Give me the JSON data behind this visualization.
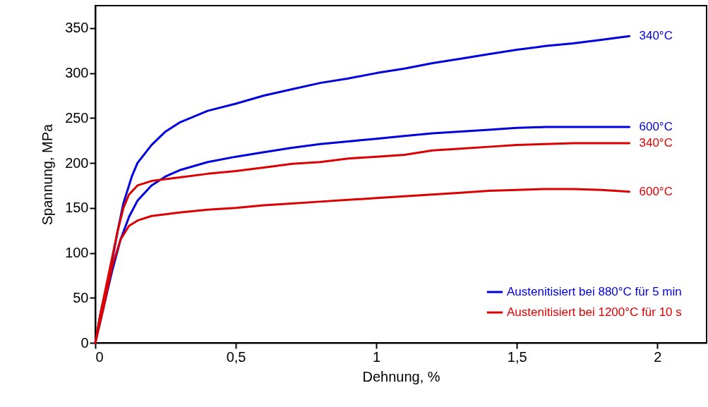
{
  "chart_data": {
    "type": "line",
    "xlabel": "Dehnung, %",
    "ylabel": "Spannung, MPa",
    "xlim": [
      0,
      2.175
    ],
    "ylim": [
      0,
      375
    ],
    "xticks": [
      0,
      {
        "value": 0.5,
        "label": "0,5"
      },
      1,
      {
        "value": 1.5,
        "label": "1,5"
      },
      2
    ],
    "yticks": [
      0,
      50,
      100,
      150,
      200,
      250,
      300,
      350
    ],
    "grid": false,
    "legend": "bottom right",
    "marker": "none",
    "line_style": "solid",
    "series": [
      {
        "name": "Austenitisiert bei 880°C für 5 min",
        "color": "#0000dd",
        "x": [
          0,
          0.02,
          0.05,
          0.08,
          0.1,
          0.13,
          0.15,
          0.2,
          0.25,
          0.3,
          0.4,
          0.5,
          0.6,
          0.7,
          0.8,
          0.9,
          1.0,
          1.1,
          1.2,
          1.3,
          1.4,
          1.5,
          1.6,
          1.7,
          1.8,
          1.9
        ],
        "values": [
          0,
          35,
          75,
          125,
          155,
          185,
          200,
          220,
          235,
          245,
          258,
          266,
          275,
          282,
          289,
          294,
          300,
          305,
          311,
          316,
          321,
          326,
          330,
          333,
          337,
          341
        ]
      },
      {
        "color": "#0000dd",
        "x": [
          0,
          0.03,
          0.06,
          0.09,
          0.12,
          0.15,
          0.2,
          0.25,
          0.3,
          0.4,
          0.5,
          0.6,
          0.7,
          0.8,
          0.9,
          1.0,
          1.1,
          1.2,
          1.3,
          1.4,
          1.5,
          1.6,
          1.7,
          1.8,
          1.9
        ],
        "values": [
          0,
          40,
          80,
          115,
          140,
          158,
          175,
          185,
          192,
          201,
          207,
          212,
          217,
          221,
          224,
          227,
          230,
          233,
          235,
          237,
          239,
          240,
          240,
          240,
          240
        ]
      },
      {
        "name": "Austenitisiert bei 1200°C für 10 s",
        "color": "#dd0000",
        "x": [
          0,
          0.02,
          0.05,
          0.08,
          0.1,
          0.12,
          0.15,
          0.2,
          0.3,
          0.4,
          0.5,
          0.6,
          0.7,
          0.8,
          0.9,
          1.0,
          1.1,
          1.2,
          1.3,
          1.4,
          1.5,
          1.6,
          1.7,
          1.8,
          1.9
        ],
        "values": [
          0,
          35,
          80,
          125,
          150,
          165,
          175,
          180,
          184,
          188,
          191,
          195,
          199,
          201,
          205,
          207,
          209,
          214,
          216,
          218,
          220,
          221,
          222,
          222,
          222
        ]
      },
      {
        "color": "#dd0000",
        "x": [
          0,
          0.03,
          0.06,
          0.09,
          0.12,
          0.15,
          0.2,
          0.3,
          0.4,
          0.5,
          0.6,
          0.7,
          0.8,
          0.9,
          1.0,
          1.1,
          1.2,
          1.3,
          1.4,
          1.5,
          1.6,
          1.7,
          1.8,
          1.9
        ],
        "values": [
          0,
          40,
          85,
          115,
          130,
          136,
          141,
          145,
          148,
          150,
          153,
          155,
          157,
          159,
          161,
          163,
          165,
          167,
          169,
          170,
          171,
          171,
          170,
          168
        ]
      }
    ],
    "annotations": [
      "340°C",
      "600°C",
      "340°C",
      "600°C"
    ]
  }
}
